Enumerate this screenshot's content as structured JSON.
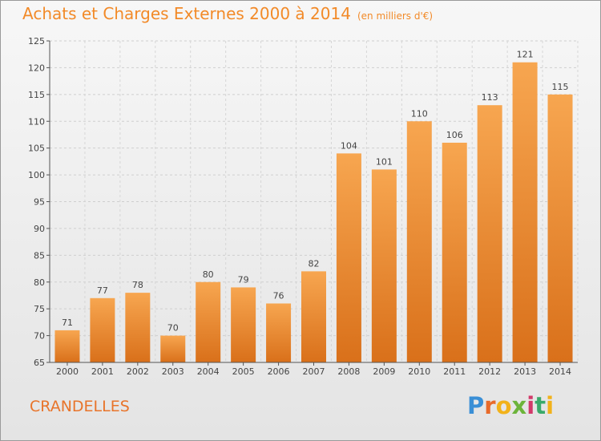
{
  "header": {
    "title": "Achats et Charges Externes 2000 à 2014",
    "unit": "(en milliers d'€)"
  },
  "commune": "CRANDELLES",
  "logo": {
    "text": "Proxiti",
    "colors": [
      "#3a8fd6",
      "#e86a2a",
      "#f2b21a",
      "#6cb43a",
      "#d23a6a",
      "#3aaa6a"
    ]
  },
  "chart_data": {
    "type": "bar",
    "categories": [
      "2000",
      "2001",
      "2002",
      "2003",
      "2004",
      "2005",
      "2006",
      "2007",
      "2008",
      "2009",
      "2010",
      "2011",
      "2012",
      "2013",
      "2014"
    ],
    "values": [
      71,
      77,
      78,
      70,
      80,
      79,
      76,
      82,
      104,
      101,
      110,
      106,
      113,
      121,
      115
    ],
    "ylim": [
      65,
      125
    ],
    "yticks": [
      65,
      70,
      75,
      80,
      85,
      90,
      95,
      100,
      105,
      110,
      115,
      120,
      125
    ],
    "grid": true,
    "bar_color_top": "#f7a650",
    "bar_color_bottom": "#d9701a",
    "title": "Achats et Charges Externes 2000 à 2014",
    "xlabel": "",
    "ylabel": ""
  }
}
